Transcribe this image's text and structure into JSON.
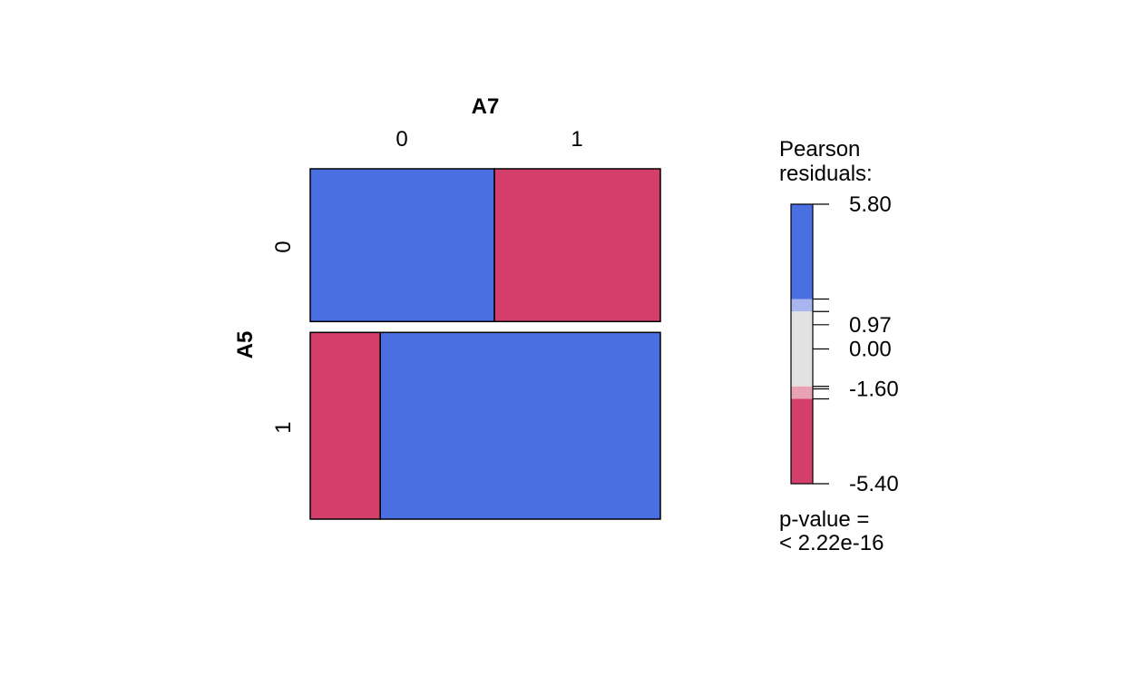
{
  "chart_data": {
    "type": "mosaic",
    "x_variable": "A7",
    "y_variable": "A5",
    "x_levels": [
      "0",
      "1"
    ],
    "y_levels": [
      "0",
      "1"
    ],
    "row_proportions": [
      0.45,
      0.55
    ],
    "cells": [
      {
        "A5": "0",
        "A7": "0",
        "width_fraction": 0.526,
        "shade": "positive"
      },
      {
        "A5": "0",
        "A7": "1",
        "width_fraction": 0.474,
        "shade": "negative"
      },
      {
        "A5": "1",
        "A7": "0",
        "width_fraction": 0.2,
        "shade": "negative"
      },
      {
        "A5": "1",
        "A7": "1",
        "width_fraction": 0.8,
        "shade": "positive"
      }
    ],
    "legend": {
      "title_line1": "Pearson",
      "title_line2": "residuals:",
      "max": 5.8,
      "min": -5.4,
      "thresholds": [
        2,
        1.5,
        -1.5,
        -2
      ],
      "tick_values": [
        5.8,
        0.97,
        0.0,
        -1.6,
        -5.4
      ],
      "tick_labels": [
        "5.80",
        "0.97",
        "0.00",
        "-1.60",
        "-5.40"
      ],
      "pvalue_line1": "p-value =",
      "pvalue_line2": "< 2.22e-16"
    },
    "colors": {
      "positive": "#4A6FE3",
      "positive_light": "#A9B5EE",
      "neutral": "#E2E2E2",
      "negative_light": "#E9A2B4",
      "negative": "#D33F6A"
    }
  }
}
